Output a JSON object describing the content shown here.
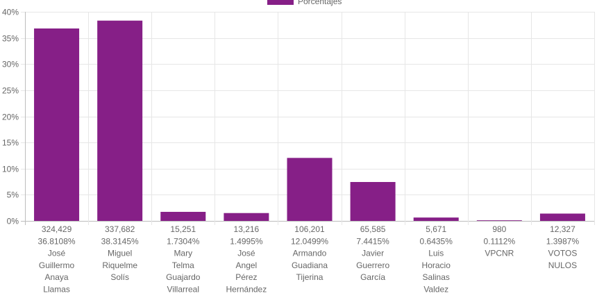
{
  "chart_data": {
    "type": "bar",
    "legend": {
      "label": "Porcentajes",
      "position": "top"
    },
    "bar_color": "#861f87",
    "grid": true,
    "ylim": [
      0,
      40
    ],
    "y_ticks": [
      "0%",
      "5%",
      "10%",
      "15%",
      "20%",
      "25%",
      "30%",
      "35%",
      "40%"
    ],
    "categories": [
      {
        "votes": "324,429",
        "percent_label": "36.8108%",
        "name_lines": [
          "José",
          "Guillermo",
          "Anaya",
          "Llamas"
        ]
      },
      {
        "votes": "337,682",
        "percent_label": "38.3145%",
        "name_lines": [
          "Miguel",
          "Riquelme",
          "Solís"
        ]
      },
      {
        "votes": "15,251",
        "percent_label": "1.7304%",
        "name_lines": [
          "Mary",
          "Telma",
          "Guajardo",
          "Villarreal"
        ]
      },
      {
        "votes": "13,216",
        "percent_label": "1.4995%",
        "name_lines": [
          "José",
          "Angel",
          "Pérez",
          "Hernández"
        ]
      },
      {
        "votes": "106,201",
        "percent_label": "12.0499%",
        "name_lines": [
          "Armando",
          "Guadiana",
          "Tijerina"
        ]
      },
      {
        "votes": "65,585",
        "percent_label": "7.4415%",
        "name_lines": [
          "Javier",
          "Guerrero",
          "García"
        ]
      },
      {
        "votes": "5,671",
        "percent_label": "0.6435%",
        "name_lines": [
          "Luis",
          "Horacio",
          "Salinas",
          "Valdez"
        ]
      },
      {
        "votes": "980",
        "percent_label": "0.1112%",
        "name_lines": [
          "VPCNR"
        ]
      },
      {
        "votes": "12,327",
        "percent_label": "1.3987%",
        "name_lines": [
          "VOTOS",
          "NULOS"
        ]
      }
    ],
    "values": [
      36.8108,
      38.3145,
      1.7304,
      1.4995,
      12.0499,
      7.4415,
      0.6435,
      0.1112,
      1.3987
    ]
  }
}
